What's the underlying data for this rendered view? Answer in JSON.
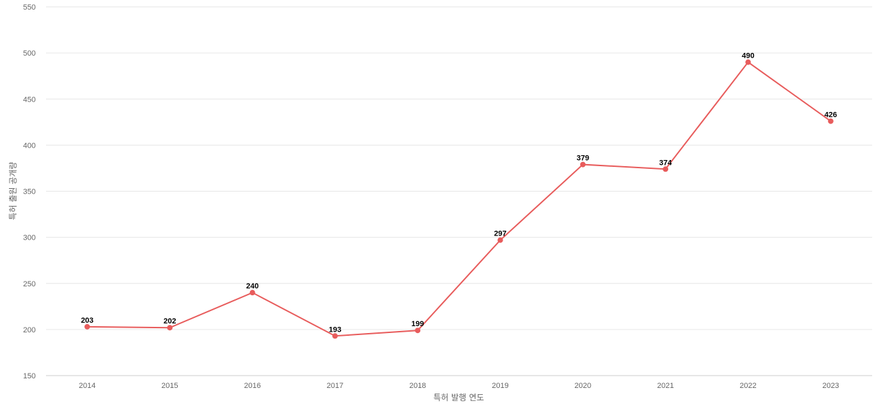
{
  "chart_data": {
    "type": "line",
    "title": "",
    "xlabel": "특허 발행 연도",
    "ylabel": "특허 출원 공개량",
    "categories": [
      "2014",
      "2015",
      "2016",
      "2017",
      "2018",
      "2019",
      "2020",
      "2021",
      "2022",
      "2023"
    ],
    "series": [
      {
        "values": [
          203,
          202,
          240,
          193,
          199,
          297,
          379,
          374,
          490,
          426
        ]
      }
    ],
    "ylim": [
      150,
      550
    ],
    "yticks": [
      "150",
      "200",
      "250",
      "300",
      "350",
      "400",
      "450",
      "500",
      "550"
    ],
    "grid": true,
    "legend": "none",
    "colors": {
      "line": "#e85c5c",
      "grid": "#e6e6e6",
      "axis": "#cccccc"
    }
  }
}
